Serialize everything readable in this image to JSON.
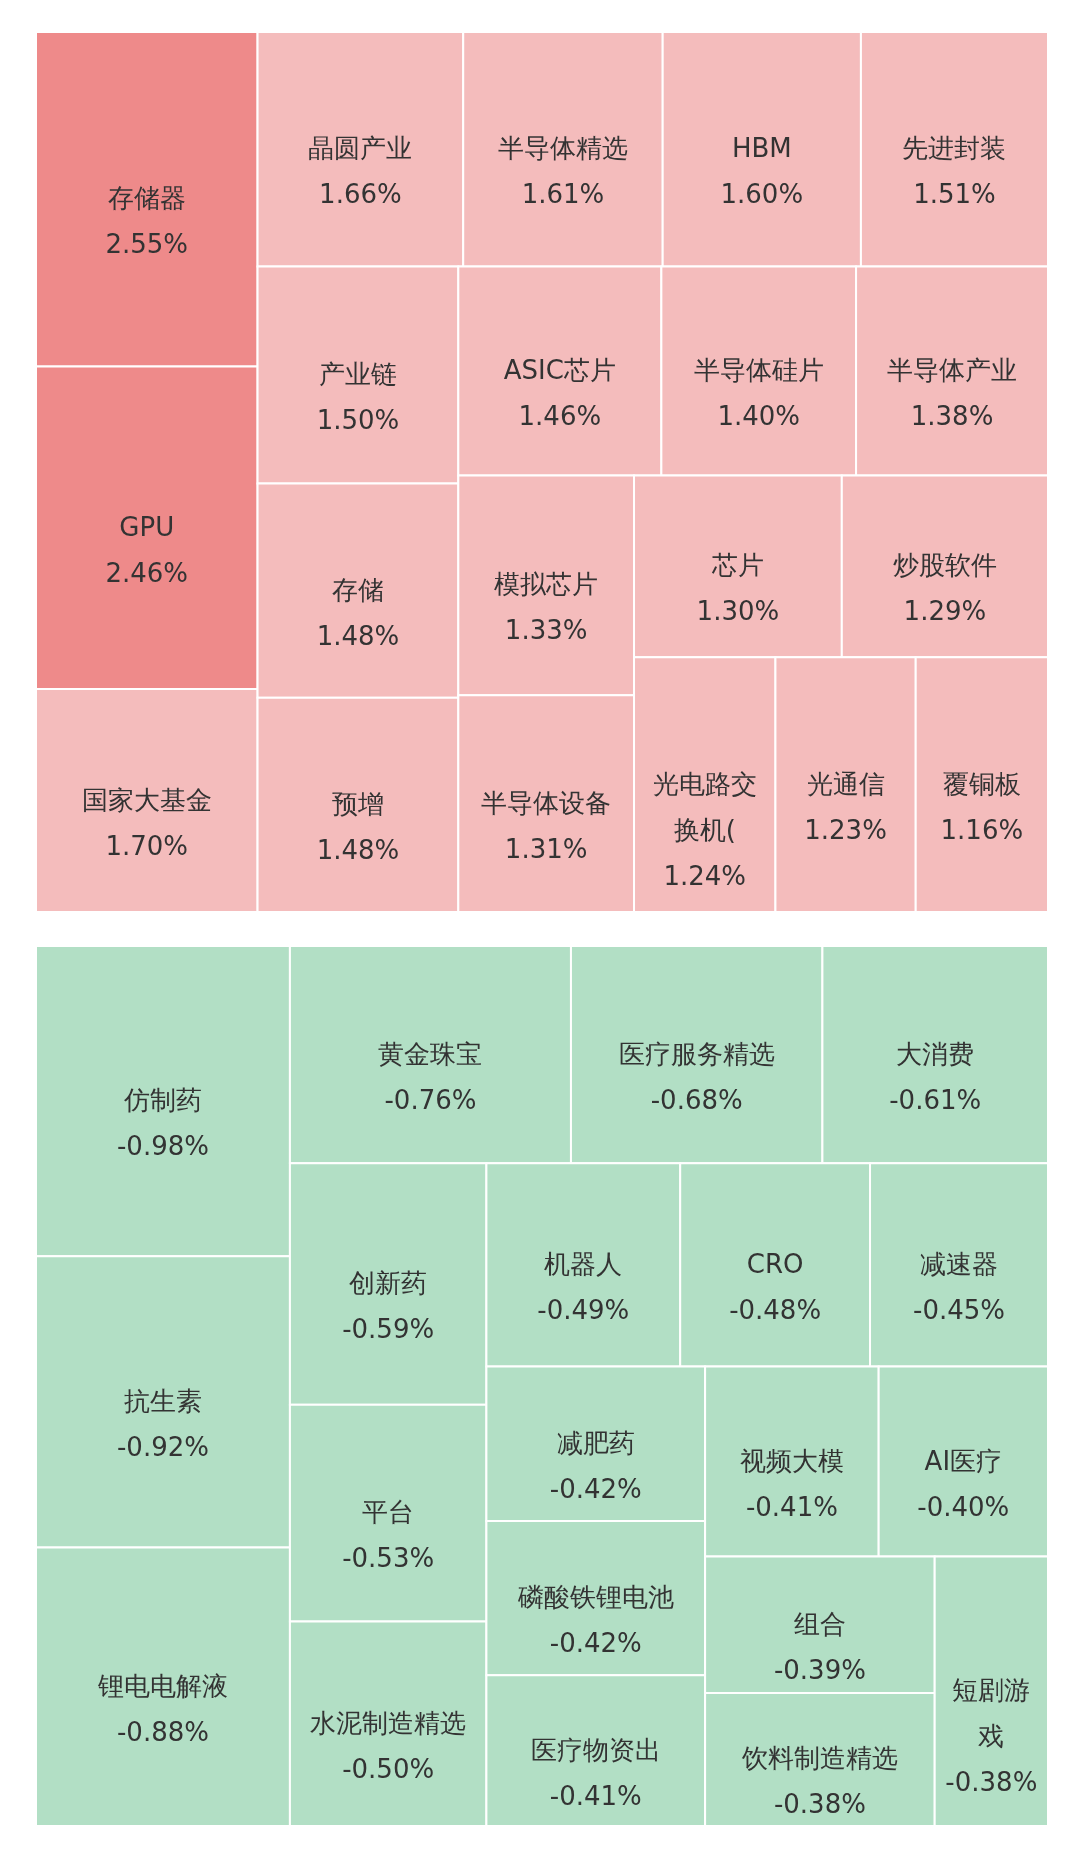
{
  "chart_data": [
    {
      "type": "other",
      "categories": [
        "存储器",
        "GPU",
        "国家大基金",
        "晶圆产业",
        "半导体精选",
        "HBM",
        "先进封装",
        "产业链",
        "存储",
        "预增",
        "ASIC芯片",
        "半导体硅片",
        "半导体产业",
        "模拟芯片",
        "半导体设备",
        "芯片",
        "炒股软件",
        "光电路交换机(",
        "光通信",
        "覆铜板"
      ],
      "values": [
        2.55,
        2.46,
        1.7,
        1.66,
        1.61,
        1.6,
        1.51,
        1.5,
        1.48,
        1.48,
        1.46,
        1.4,
        1.38,
        1.33,
        1.31,
        1.3,
        1.29,
        1.24,
        1.23,
        1.16
      ],
      "value_labels": [
        "2.55%",
        "2.46%",
        "1.70%",
        "1.66%",
        "1.61%",
        "1.60%",
        "1.51%",
        "1.50%",
        "1.48%",
        "1.48%",
        "1.46%",
        "1.40%",
        "1.38%",
        "1.33%",
        "1.31%",
        "1.30%",
        "1.29%",
        "1.24%",
        "1.23%",
        "1.16%"
      ],
      "colors": [
        "#ee8a8a",
        "#ee8a8a",
        "#f4bcbc",
        "#f4bcbc",
        "#f4bcbc",
        "#f4bcbc",
        "#f4bcbc",
        "#f4bcbc",
        "#f4bcbc",
        "#f4bcbc",
        "#f4bcbc",
        "#f4bcbc",
        "#f4bcbc",
        "#f4bcbc",
        "#f4bcbc",
        "#f4bcbc",
        "#f4bcbc",
        "#f4bcbc",
        "#f4bcbc",
        "#f4bcbc"
      ]
    },
    {
      "type": "other",
      "categories": [
        "仿制药",
        "抗生素",
        "锂电电解液",
        "黄金珠宝",
        "医疗服务精选",
        "大消费",
        "创新药",
        "平台",
        "水泥制造精选",
        "机器人",
        "CRO",
        "减速器",
        "减肥药",
        "磷酸铁锂电池",
        "医疗物资出",
        "视频大模",
        "AI医疗",
        "组合",
        "饮料制造精选",
        "短剧游戏"
      ],
      "values": [
        -0.98,
        -0.92,
        -0.88,
        -0.76,
        -0.68,
        -0.61,
        -0.59,
        -0.53,
        -0.5,
        -0.49,
        -0.48,
        -0.45,
        -0.42,
        -0.42,
        -0.41,
        -0.41,
        -0.4,
        -0.39,
        -0.38,
        -0.38
      ],
      "value_labels": [
        "-0.98%",
        "-0.92%",
        "-0.88%",
        "-0.76%",
        "-0.68%",
        "-0.61%",
        "-0.59%",
        "-0.53%",
        "-0.50%",
        "-0.49%",
        "-0.48%",
        "-0.45%",
        "-0.42%",
        "-0.42%",
        "-0.41%",
        "-0.41%",
        "-0.40%",
        "-0.39%",
        "-0.38%",
        "-0.38%"
      ],
      "colors": [
        "#b2dfc5",
        "#b2dfc5",
        "#b2dfc5",
        "#b2dfc5",
        "#b2dfc5",
        "#b2dfc5",
        "#b2dfc5",
        "#b2dfc5",
        "#b2dfc5",
        "#b2dfc5",
        "#b2dfc5",
        "#b2dfc5",
        "#b2dfc5",
        "#b2dfc5",
        "#b2dfc5",
        "#b2dfc5",
        "#b2dfc5",
        "#b2dfc5",
        "#b2dfc5",
        "#b2dfc5"
      ]
    }
  ]
}
